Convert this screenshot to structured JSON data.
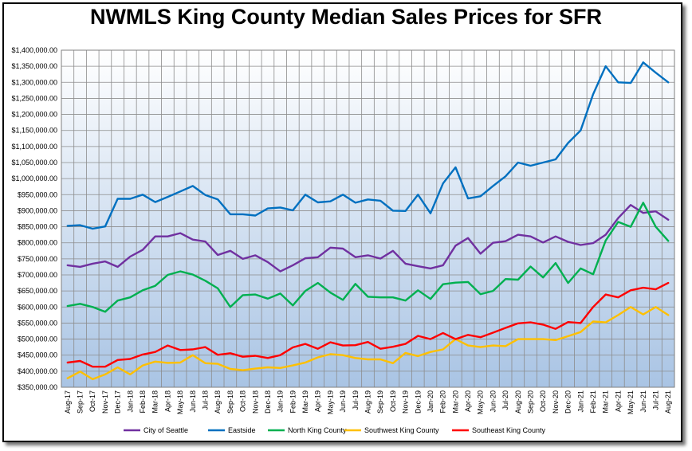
{
  "chart_data": {
    "type": "line",
    "title": "NWMLS King County Median Sales Prices for SFR",
    "xlabel": "",
    "ylabel": "",
    "ylim": [
      350000,
      1400000
    ],
    "y_ticks": [
      "$350,000.00",
      "$400,000.00",
      "$450,000.00",
      "$500,000.00",
      "$550,000.00",
      "$600,000.00",
      "$650,000.00",
      "$700,000.00",
      "$750,000.00",
      "$800,000.00",
      "$850,000.00",
      "$900,000.00",
      "$950,000.00",
      "$1,000,000.00",
      "$1,050,000.00",
      "$1,100,000.00",
      "$1,150,000.00",
      "$1,200,000.00",
      "$1,250,000.00",
      "$1,300,000.00",
      "$1,350,000.00",
      "$1,400,000.00"
    ],
    "y_tick_values": [
      350000,
      400000,
      450000,
      500000,
      550000,
      600000,
      650000,
      700000,
      750000,
      800000,
      850000,
      900000,
      950000,
      1000000,
      1050000,
      1100000,
      1150000,
      1200000,
      1250000,
      1300000,
      1350000,
      1400000
    ],
    "grid": true,
    "legend_position": "bottom",
    "categories": [
      "Aug-17",
      "Sep-17",
      "Oct-17",
      "Nov-17",
      "Dec-17",
      "Jan-18",
      "Feb-18",
      "Mar-18",
      "Apr-18",
      "May-18",
      "Jun-18",
      "Jul-18",
      "Aug-18",
      "Sep-18",
      "Oct-18",
      "Nov-18",
      "Dec-18",
      "Jan-19",
      "Feb-19",
      "Mar-19",
      "Apr-19",
      "May-19",
      "Jun-19",
      "Jul-19",
      "Aug-19",
      "Sep-19",
      "Oct-19",
      "Nov-19",
      "Dec-19",
      "Jan-20",
      "Feb-20",
      "Mar-20",
      "Apr-20",
      "May-20",
      "Jun-20",
      "Jul-20",
      "Aug-20",
      "Sep-20",
      "Oct-20",
      "Nov-20",
      "Dec-20",
      "Jan-21",
      "Feb-21",
      "Mar-21",
      "Apr-21",
      "May-21",
      "Jun-21",
      "Jul-21",
      "Aug-21"
    ],
    "series": [
      {
        "name": "City of Seattle",
        "color": "#7030a0",
        "values": [
          730000,
          725000,
          735000,
          742000,
          725000,
          757000,
          778000,
          820000,
          820000,
          830000,
          810000,
          804000,
          762000,
          775000,
          750000,
          761000,
          740000,
          711000,
          730000,
          752000,
          755000,
          785000,
          782000,
          755000,
          761000,
          751000,
          775000,
          735000,
          727000,
          720000,
          730000,
          791000,
          815000,
          766000,
          800000,
          805000,
          825000,
          820000,
          801000,
          820000,
          803000,
          793000,
          799000,
          825000,
          877000,
          918000,
          893000,
          898000,
          872000
        ]
      },
      {
        "name": "Eastside",
        "color": "#0070c0",
        "values": [
          853000,
          855000,
          844000,
          851000,
          937000,
          937000,
          950000,
          927000,
          943000,
          960000,
          977000,
          949000,
          935000,
          889000,
          889000,
          885000,
          907000,
          910000,
          901000,
          950000,
          926000,
          929000,
          950000,
          925000,
          935000,
          931000,
          900000,
          899000,
          950000,
          892000,
          985000,
          1035000,
          938000,
          945000,
          977000,
          1007000,
          1050000,
          1040000,
          1050000,
          1060000,
          1111000,
          1150000,
          1263000,
          1350000,
          1300000,
          1298000,
          1362000,
          1330000,
          1300000
        ]
      },
      {
        "name": "North King County",
        "color": "#00b050",
        "values": [
          603000,
          610000,
          600000,
          585000,
          620000,
          630000,
          652000,
          666000,
          700000,
          711000,
          701000,
          682000,
          658000,
          600000,
          637000,
          639000,
          626000,
          642000,
          605000,
          650000,
          675000,
          645000,
          622000,
          672000,
          632000,
          630000,
          630000,
          620000,
          652000,
          625000,
          671000,
          676000,
          678000,
          640000,
          650000,
          687000,
          685000,
          726000,
          692000,
          737000,
          675000,
          720000,
          702000,
          807000,
          865000,
          850000,
          925000,
          850000,
          806000
        ]
      },
      {
        "name": "Southwest King County",
        "color": "#ffc000",
        "values": [
          378000,
          399000,
          375000,
          390000,
          412000,
          390000,
          418000,
          430000,
          426000,
          427000,
          450000,
          425000,
          423000,
          407000,
          403000,
          408000,
          412000,
          410000,
          418000,
          427000,
          443000,
          453000,
          450000,
          441000,
          437000,
          437000,
          425000,
          457000,
          447000,
          460000,
          468000,
          500000,
          480000,
          475000,
          480000,
          478000,
          500000,
          500000,
          500000,
          497000,
          509000,
          522000,
          555000,
          552000,
          575000,
          600000,
          577000,
          600000,
          575000
        ]
      },
      {
        "name": "Southeast King County",
        "color": "#ff0000",
        "values": [
          427000,
          432000,
          414000,
          414000,
          435000,
          438000,
          452000,
          460000,
          480000,
          466000,
          468000,
          475000,
          451000,
          456000,
          445000,
          448000,
          441000,
          450000,
          474000,
          485000,
          470000,
          490000,
          480000,
          481000,
          491000,
          470000,
          476000,
          485000,
          510000,
          500000,
          519000,
          500000,
          513000,
          506000,
          520000,
          535000,
          549000,
          552000,
          545000,
          532000,
          553000,
          550000,
          600000,
          639000,
          630000,
          652000,
          660000,
          655000,
          675000
        ]
      }
    ]
  }
}
